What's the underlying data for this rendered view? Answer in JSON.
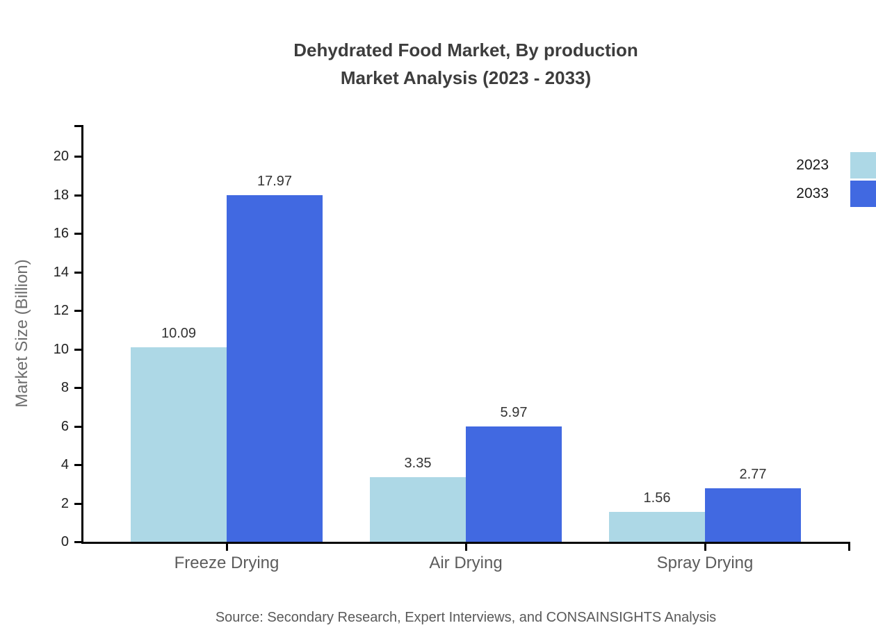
{
  "title": {
    "line1": "Dehydrated Food Market, By production",
    "line2": "Market Analysis (2023 - 2033)"
  },
  "source_note": "Source: Secondary Research, Expert Interviews, and CONSAINSIGHTS Analysis",
  "chart_data": {
    "type": "bar",
    "title": "Dehydrated Food Market, By production Market Analysis (2023 - 2033)",
    "categories": [
      "Freeze Drying",
      "Air Drying",
      "Spray Drying"
    ],
    "series": [
      {
        "name": "2023",
        "color": "#ADD8E6",
        "values": [
          10.09,
          3.35,
          1.56
        ]
      },
      {
        "name": "2033",
        "color": "#4169E1",
        "values": [
          17.97,
          5.97,
          2.77
        ]
      }
    ],
    "xlabel": "",
    "ylabel": "Market Size (Billion)",
    "ylim": [
      0,
      20
    ],
    "yticks": [
      0,
      2,
      4,
      6,
      8,
      10,
      12,
      14,
      16,
      18,
      20
    ],
    "grid": false,
    "legend_position": "top-right",
    "value_labels": true
  },
  "colors": {
    "axis": "#000000",
    "title_text": "#3d3d3d",
    "tick_label_text": "#1f1f1f",
    "value_label_text": "#333333",
    "category_label_text": "#5c5c5c",
    "y_axis_title_text": "#6e6e6e",
    "source_text": "#595959",
    "background": "#ffffff"
  }
}
